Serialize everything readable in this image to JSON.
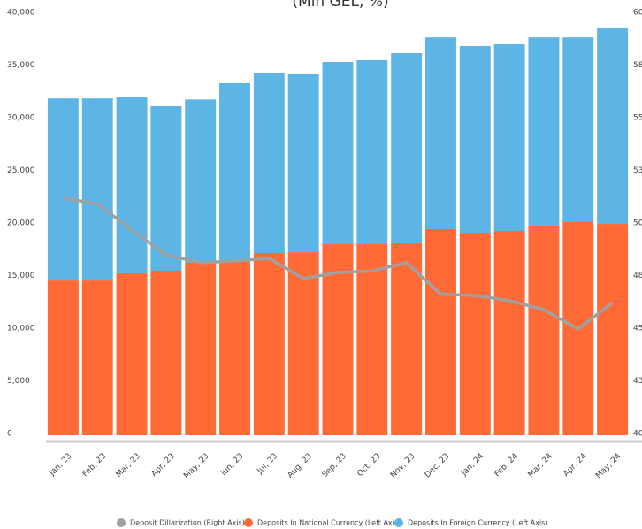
{
  "chart_data": {
    "type": "bar",
    "title": "(Mln GEL, %)",
    "categories": [
      "Jan, 23",
      "Feb, 23",
      "Mar, 23",
      "Apr, 23",
      "May, 23",
      "Jun, 23",
      "Jul, 23",
      "Aug, 23",
      "Sep, 23",
      "Oct, 23",
      "Nov, 23",
      "Dec, 23",
      "Jan, 24",
      "Feb, 24",
      "Mar, 24",
      "Apr, 24",
      "May, 24"
    ],
    "series": [
      {
        "name": "Deposit Dillarization (Right Axis)",
        "color": "#a0a0a0",
        "axis": "y2",
        "kind": "line",
        "values": [
          51.26,
          51.0,
          49.75,
          48.57,
          48.2,
          48.28,
          48.4,
          47.44,
          47.73,
          47.8,
          48.2,
          46.7,
          46.64,
          46.39,
          45.97,
          45.04,
          46.3
        ]
      },
      {
        "name": "Deposits In National Currency (Left Axis)",
        "color": "#ff6a36",
        "kind": "bar",
        "values": [
          14700,
          14700,
          15380,
          15630,
          16390,
          16470,
          17310,
          17390,
          18150,
          18150,
          18240,
          19580,
          19240,
          19410,
          19920,
          20250,
          20080
        ]
      },
      {
        "name": "Deposits In Foreign Currency (Left Axis)",
        "color": "#5db5e5",
        "kind": "bar",
        "values": [
          17300,
          17300,
          16720,
          15630,
          15510,
          16980,
          17140,
          16900,
          17310,
          17480,
          18060,
          18220,
          17730,
          17730,
          17880,
          17550,
          18570
        ]
      }
    ],
    "ylim": [
      0,
      40000
    ],
    "yticks": [
      0,
      {
        "value": 5000,
        "label": "5,000"
      },
      {
        "value": 10000,
        "label": "10,000"
      },
      {
        "value": 15000,
        "label": "15,000"
      },
      {
        "value": 20000,
        "label": "20,000"
      },
      {
        "value": 25000,
        "label": "25,000"
      },
      {
        "value": 30000,
        "label": "30,000"
      },
      {
        "value": 35000,
        "label": "35,000"
      },
      {
        "value": 40000,
        "label": "40,000"
      }
    ],
    "y2lim": [
      40,
      60
    ],
    "y2ticks": [
      40,
      {
        "value": 42.5,
        "label": "43"
      },
      {
        "value": 45,
        "label": "45"
      },
      {
        "value": 47.5,
        "label": "48"
      },
      50,
      {
        "value": 52.5,
        "label": "53"
      },
      {
        "value": 55,
        "label": "55"
      },
      {
        "value": 57.5,
        "label": "58"
      },
      60
    ],
    "legend": "bottom"
  }
}
